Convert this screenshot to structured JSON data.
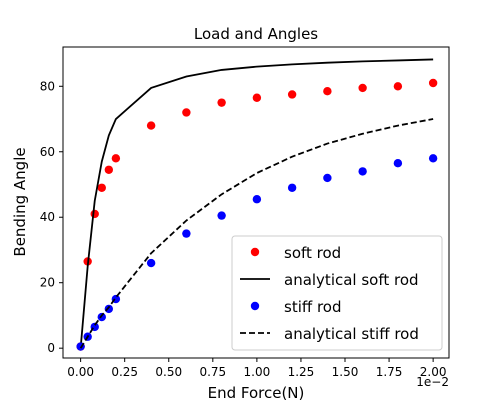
{
  "chart_data": {
    "type": "scatter",
    "title": "Load and Angles",
    "xlabel": "End Force(N)",
    "ylabel": "Bending Angle",
    "x_offset_text": "1e−2",
    "xlim": [
      -0.001,
      0.0209
    ],
    "ylim": [
      -3,
      92
    ],
    "x_ticks": [
      0,
      0.0025,
      0.005,
      0.0075,
      0.01,
      0.0125,
      0.015,
      0.0175,
      0.02
    ],
    "x_tick_labels": [
      "0.00",
      "0.25",
      "0.50",
      "0.75",
      "1.00",
      "1.25",
      "1.50",
      "1.75",
      "2.00"
    ],
    "y_ticks": [
      0,
      20,
      40,
      60,
      80
    ],
    "y_tick_labels": [
      "0",
      "20",
      "40",
      "60",
      "80"
    ],
    "grid": false,
    "legend_position": "lower-right",
    "series": [
      {
        "name": "soft rod",
        "kind": "points",
        "color": "#ff0000",
        "x": [
          0,
          0.0004,
          0.0008,
          0.0012,
          0.0016,
          0.002,
          0.004,
          0.006,
          0.008,
          0.01,
          0.012,
          0.014,
          0.016,
          0.018,
          0.02
        ],
        "y": [
          0.5,
          26.5,
          41,
          49,
          54.5,
          58,
          68,
          72,
          75,
          76.5,
          77.5,
          78.5,
          79.5,
          80,
          81
        ]
      },
      {
        "name": "analytical soft rod",
        "kind": "line",
        "dash": "solid",
        "color": "#000000",
        "x": [
          0,
          0.0004,
          0.0008,
          0.0012,
          0.0016,
          0.002,
          0.004,
          0.006,
          0.008,
          0.01,
          0.012,
          0.014,
          0.016,
          0.018,
          0.02
        ],
        "y": [
          0,
          25,
          45,
          57,
          65,
          70,
          79.5,
          83,
          85,
          86,
          86.7,
          87.2,
          87.6,
          87.9,
          88.2
        ]
      },
      {
        "name": "stiff rod",
        "kind": "points",
        "color": "#0000ff",
        "x": [
          0,
          0.0004,
          0.0008,
          0.0012,
          0.0016,
          0.002,
          0.004,
          0.006,
          0.008,
          0.01,
          0.012,
          0.014,
          0.016,
          0.018,
          0.02
        ],
        "y": [
          0.5,
          3.5,
          6.5,
          9.5,
          12,
          15,
          26,
          35,
          40.5,
          45.5,
          49,
          52,
          54,
          56.5,
          58
        ]
      },
      {
        "name": "analytical stiff rod",
        "kind": "line",
        "dash": "dashed",
        "color": "#000000",
        "x": [
          0,
          0.0004,
          0.0008,
          0.0012,
          0.0016,
          0.002,
          0.004,
          0.006,
          0.008,
          0.01,
          0.012,
          0.014,
          0.016,
          0.018,
          0.02
        ],
        "y": [
          0,
          3.5,
          7,
          10,
          12.5,
          15.5,
          29,
          39,
          47,
          53.5,
          58.5,
          62.5,
          65.5,
          68,
          70
        ]
      }
    ]
  }
}
